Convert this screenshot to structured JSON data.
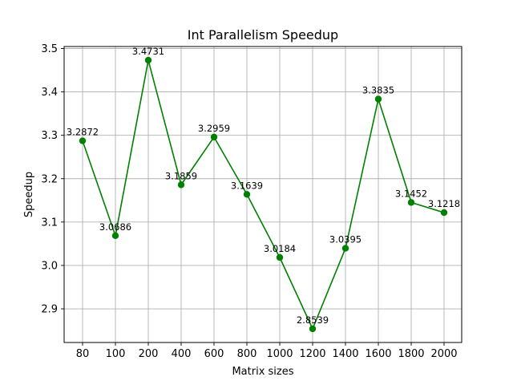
{
  "chart_data": {
    "type": "line",
    "title": "Int Parallelism Speedup",
    "xlabel": "Matrix sizes",
    "ylabel": "Speedup",
    "categories": [
      "80",
      "100",
      "200",
      "400",
      "600",
      "800",
      "1000",
      "1200",
      "1400",
      "1600",
      "1800",
      "2000"
    ],
    "series": [
      {
        "values": [
          3.2872,
          3.0686,
          3.4731,
          3.1859,
          3.2959,
          3.1639,
          3.0184,
          2.8539,
          3.0395,
          3.3835,
          3.1452,
          3.1218
        ],
        "data_labels": [
          "3.2872",
          "3.0686",
          "3.4731",
          "3.1859",
          "3.2959",
          "3.1639",
          "3.0184",
          "2.8539",
          "3.0395",
          "3.3835",
          "3.1452",
          "3.1218"
        ],
        "color": "#008000",
        "marker": "circle"
      }
    ],
    "yticks": [
      "2.9",
      "3.0",
      "3.1",
      "3.2",
      "3.3",
      "3.4",
      "3.5"
    ],
    "ylim": [
      2.8224,
      3.5046
    ],
    "grid": true
  }
}
